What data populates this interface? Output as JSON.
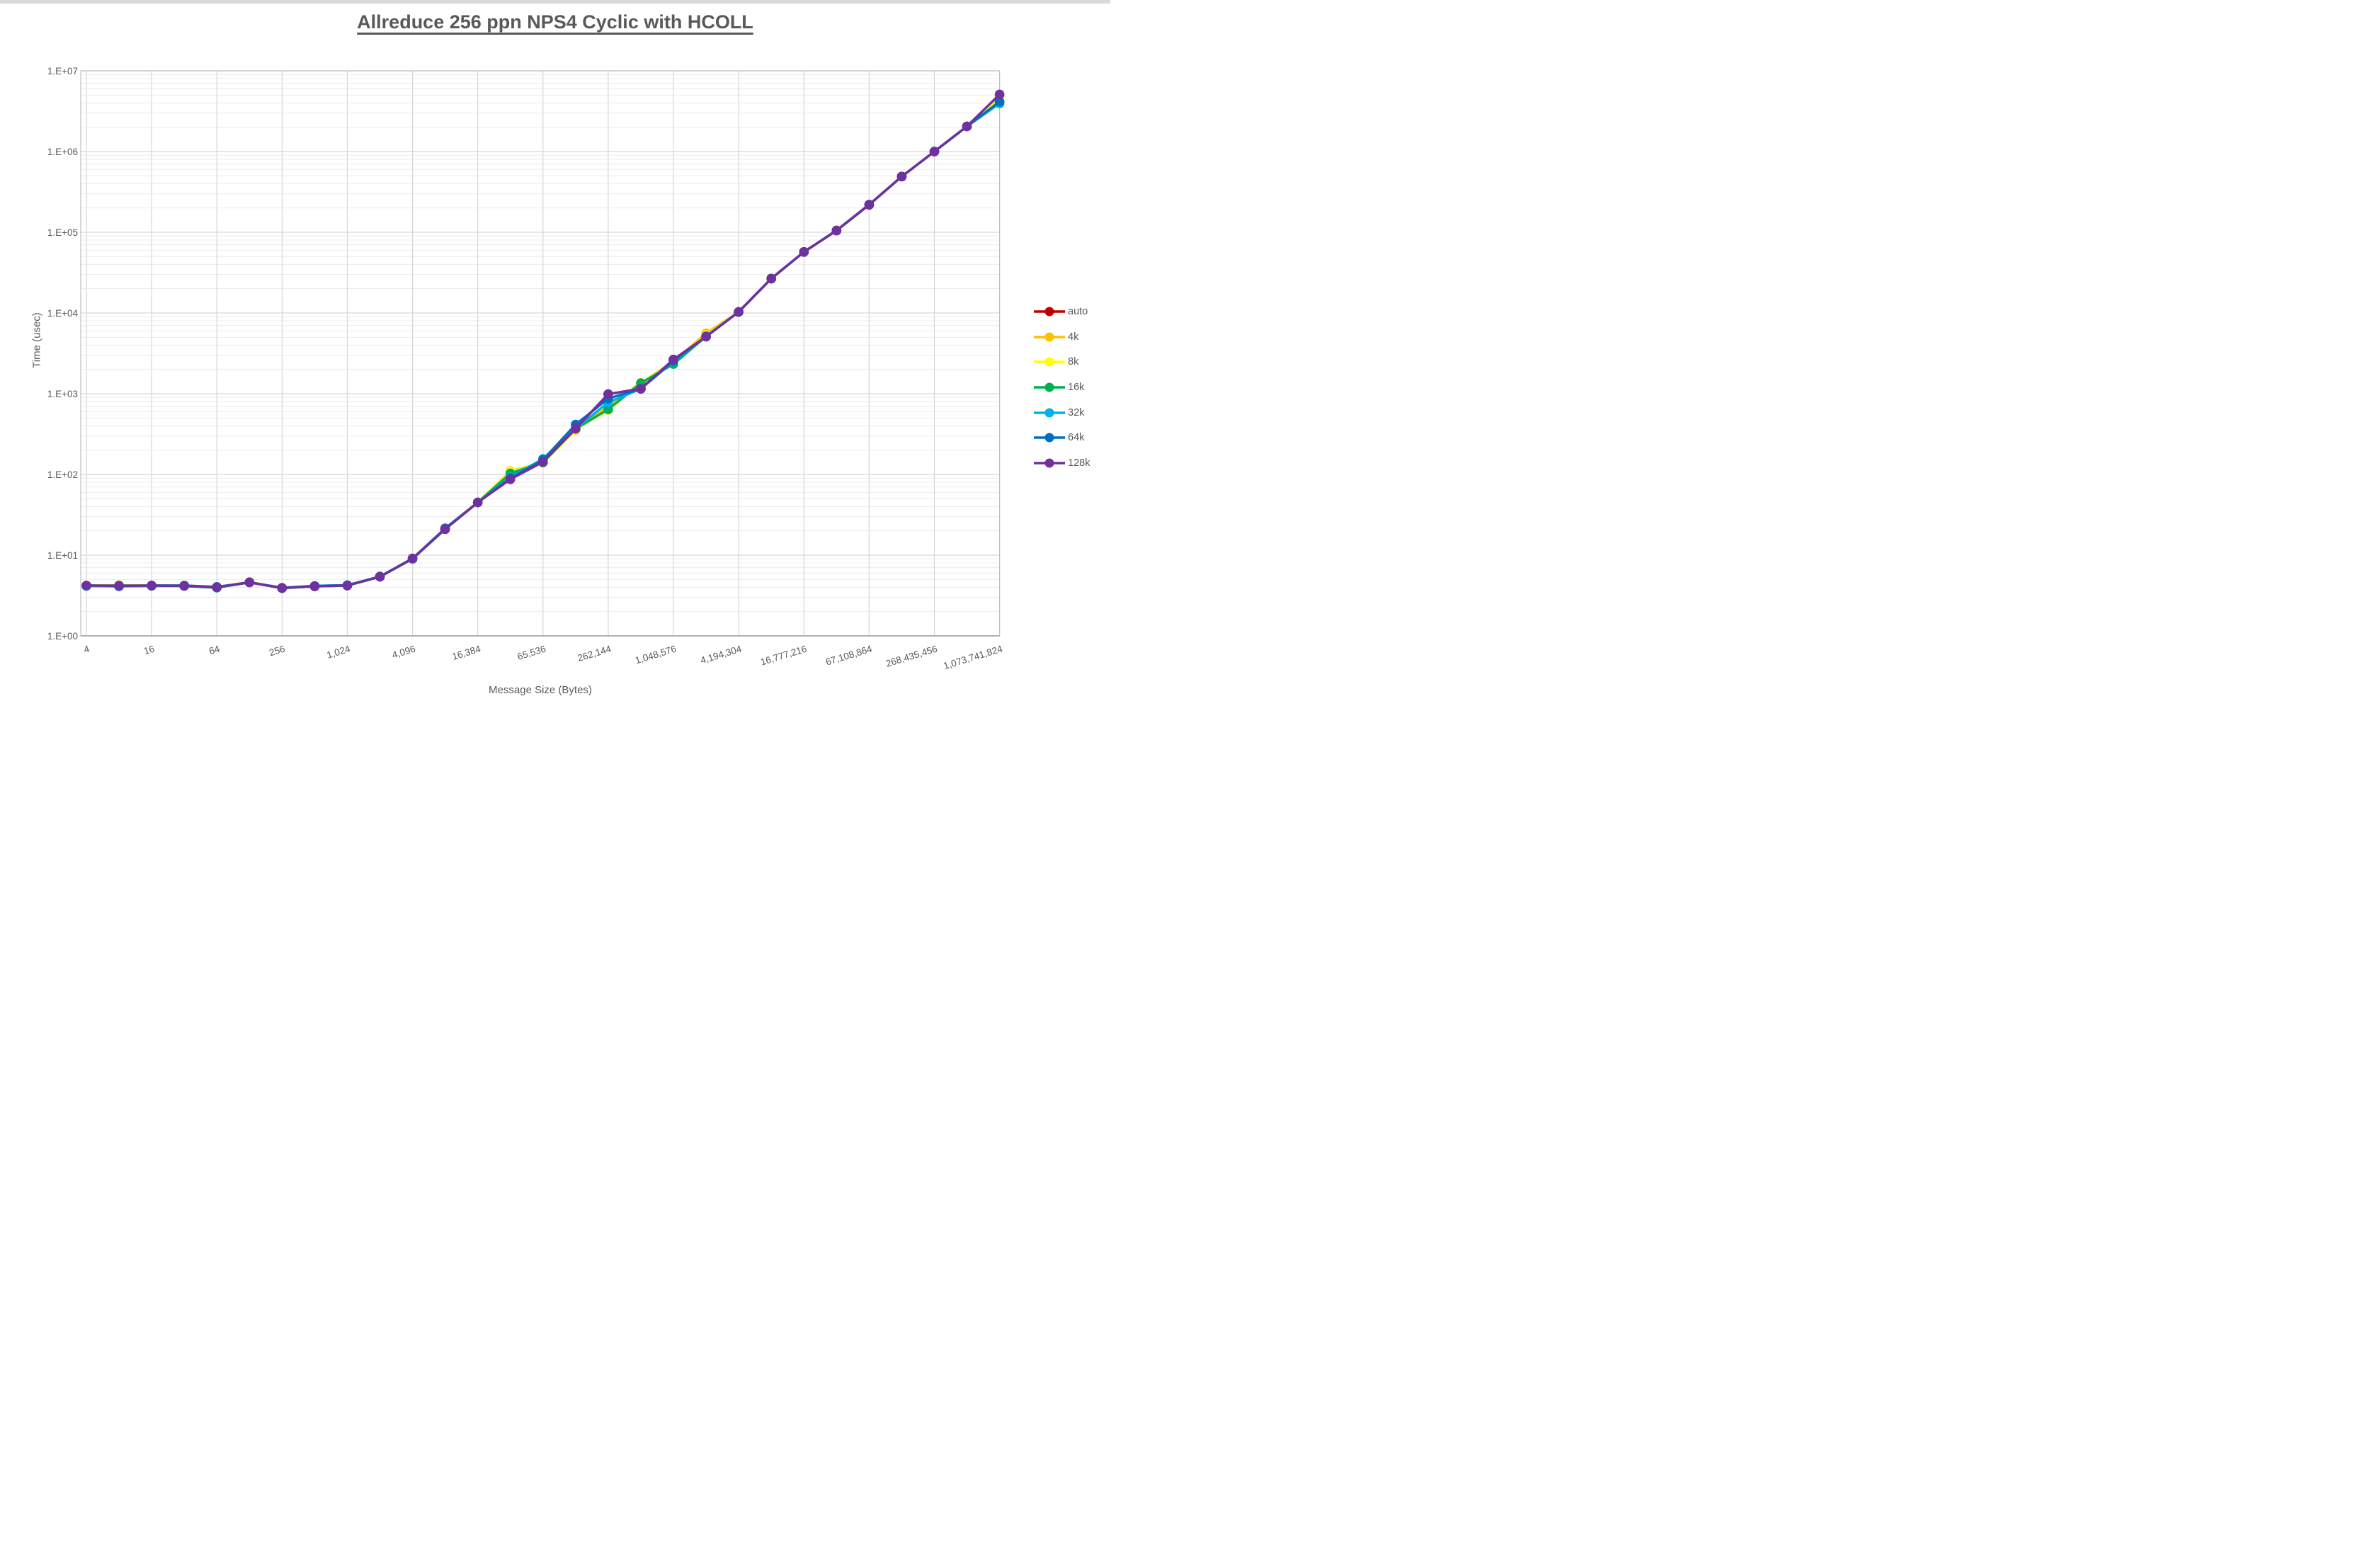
{
  "page": {
    "title": "Allreduce 256 ppn NPS4 Cyclic with HCOLL"
  },
  "chart_data": {
    "type": "line",
    "title": "Allreduce 256 ppn NPS4 Cyclic with HCOLL",
    "xlabel": "Message Size (Bytes)",
    "ylabel": "Time (usec)",
    "x_scale": "log2",
    "y_scale": "log10",
    "ylim": [
      1,
      10000000
    ],
    "y_tick_labels": [
      "1.E+00",
      "1.E+01",
      "1.E+02",
      "1.E+03",
      "1.E+04",
      "1.E+05",
      "1.E+06",
      "1.E+07"
    ],
    "x_tick_labels": [
      "4",
      "16",
      "64",
      "256",
      "1,024",
      "4,096",
      "16,384",
      "65,536",
      "262,144",
      "1,048,576",
      "4,194,304",
      "16,777,216",
      "67,108,864",
      "268,435,456",
      "1,073,741,824"
    ],
    "grid": "major and log-minor horizontal, major vertical",
    "legend_position": "right",
    "marker": "circle",
    "x": [
      4,
      8,
      16,
      32,
      64,
      128,
      256,
      512,
      1024,
      2048,
      4096,
      8192,
      16384,
      32768,
      65536,
      131072,
      262144,
      524288,
      1048576,
      2097152,
      4194304,
      8388608,
      16777216,
      33554432,
      67108864,
      134217728,
      268435456,
      536870912,
      1073741824
    ],
    "series": [
      {
        "name": "auto",
        "color": "#C00000",
        "values": [
          4.2,
          4.15,
          4.2,
          4.15,
          4.0,
          4.6,
          3.9,
          4.1,
          4.2,
          5.4,
          9.1,
          21,
          45,
          88,
          143,
          370,
          985,
          1155,
          2640,
          5100,
          10300,
          26700,
          57000,
          105000,
          218000,
          490000,
          1000000,
          2050000,
          5000000
        ]
      },
      {
        "name": "4k",
        "color": "#FFC000",
        "values": [
          4.2,
          4.25,
          4.2,
          4.2,
          4.0,
          4.65,
          3.9,
          4.1,
          4.2,
          5.4,
          9.1,
          21,
          45,
          110,
          140,
          355,
          700,
          1360,
          2500,
          5600,
          10300,
          26700,
          57000,
          105000,
          220000,
          490000,
          1000000,
          2050000,
          4800000
        ]
      },
      {
        "name": "8k",
        "color": "#FFFF00",
        "values": [
          4.2,
          4.2,
          4.2,
          4.2,
          4.0,
          4.6,
          3.9,
          4.1,
          4.2,
          5.4,
          9.0,
          21,
          45,
          108,
          139,
          360,
          630,
          1350,
          2450,
          5300,
          10300,
          26700,
          57000,
          105000,
          220000,
          490000,
          1000000,
          2050000,
          4500000
        ]
      },
      {
        "name": "16k",
        "color": "#00B050",
        "values": [
          4.15,
          4.1,
          4.15,
          4.15,
          3.95,
          4.6,
          3.9,
          4.1,
          4.2,
          5.4,
          9.0,
          21,
          45,
          103,
          141,
          368,
          640,
          1350,
          2330,
          5100,
          10300,
          26700,
          57000,
          105000,
          220000,
          490000,
          1000000,
          2050000,
          3950000
        ]
      },
      {
        "name": "32k",
        "color": "#00B0F0",
        "values": [
          4.15,
          4.1,
          4.2,
          4.2,
          4.0,
          4.6,
          3.9,
          4.15,
          4.25,
          5.4,
          9.0,
          21,
          45,
          92,
          156,
          368,
          780,
          1150,
          2500,
          5100,
          10300,
          26700,
          57000,
          105000,
          220000,
          490000,
          1000000,
          2050000,
          4050000
        ]
      },
      {
        "name": "64k",
        "color": "#0070C0",
        "values": [
          4.2,
          4.2,
          4.2,
          4.2,
          4.05,
          4.6,
          3.95,
          4.15,
          4.25,
          5.45,
          9.1,
          21.5,
          45,
          90,
          152,
          415,
          870,
          1150,
          2550,
          5150,
          10300,
          26700,
          57000,
          105000,
          220000,
          490000,
          1000000,
          2050000,
          4150000
        ]
      },
      {
        "name": "128k",
        "color": "#7030A0",
        "values": [
          4.2,
          4.15,
          4.2,
          4.15,
          4.0,
          4.6,
          3.9,
          4.1,
          4.2,
          5.4,
          9.1,
          21,
          45,
          87,
          143,
          368,
          990,
          1150,
          2650,
          5080,
          10300,
          26700,
          57000,
          105000,
          220000,
          490000,
          1000000,
          2050000,
          5100000
        ]
      }
    ]
  }
}
